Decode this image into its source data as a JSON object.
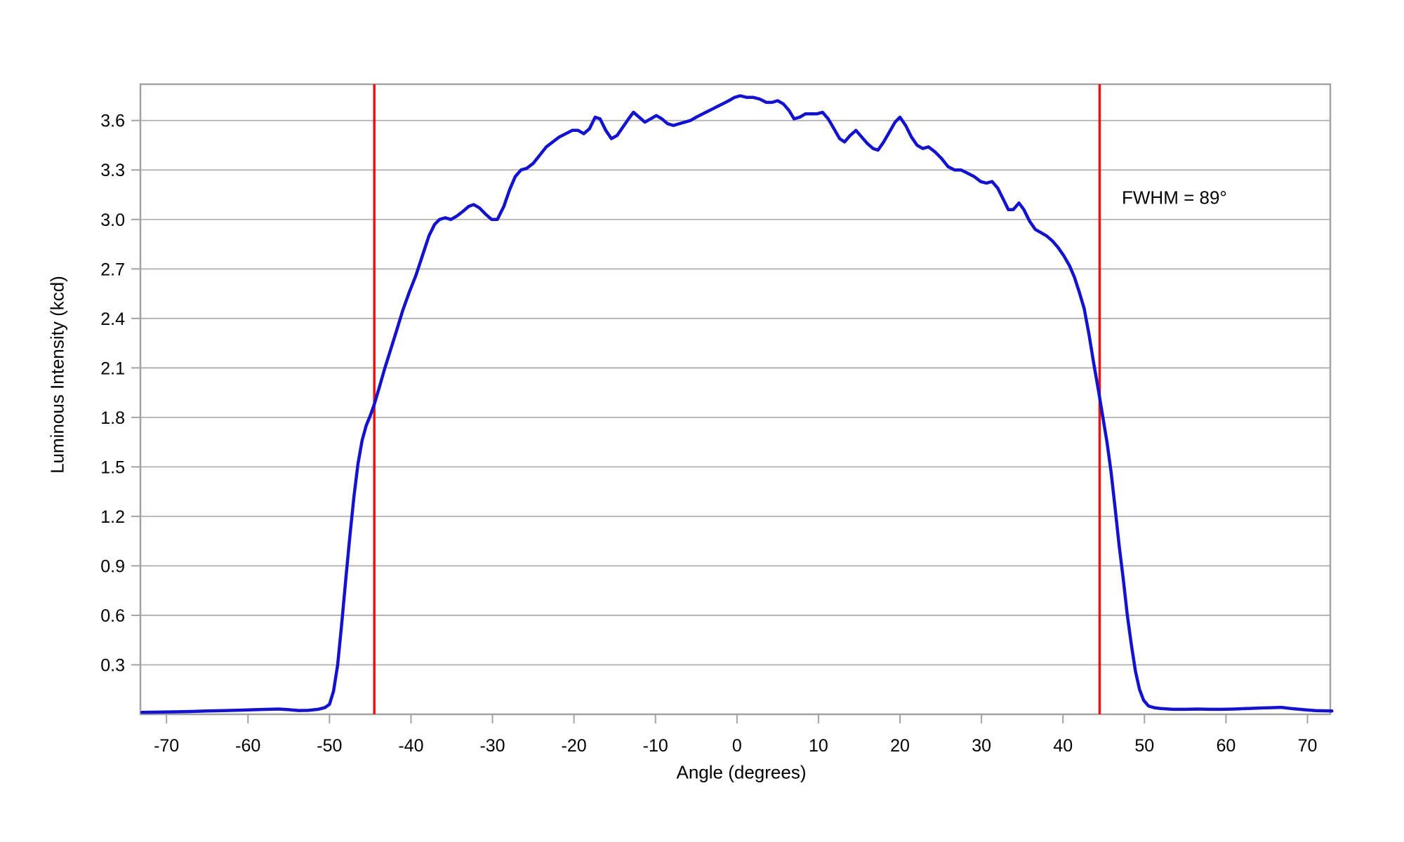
{
  "chart_data": {
    "type": "line",
    "title": "",
    "xlabel": "Angle (degrees)",
    "ylabel": "Luminous Intensity (kcd)",
    "xlim": [
      -73.2,
      72.8
    ],
    "ylim": [
      0,
      3.82
    ],
    "grid": "horizontal-only",
    "legend": "none",
    "grid_color": "#b0b0b0",
    "axis_color": "#a3a3a3",
    "text_color": "#000000",
    "x_tick_values": [
      -70,
      -60,
      -50,
      -40,
      -30,
      -20,
      -10,
      0,
      10,
      20,
      30,
      40,
      50,
      60,
      70
    ],
    "x_tick_labels": [
      "-70",
      "-60",
      "-50",
      "-40",
      "-30",
      "-20",
      "-10",
      "0",
      "10",
      "20",
      "30",
      "40",
      "50",
      "60",
      "70"
    ],
    "y_tick_values": [
      0.3,
      0.6,
      0.9,
      1.2,
      1.5,
      1.8,
      2.1,
      2.4,
      2.7,
      3.0,
      3.3,
      3.6
    ],
    "y_tick_labels": [
      "0.3",
      "0.6",
      "0.9",
      "1.2",
      "1.5",
      "1.8",
      "2.1",
      "2.4",
      "2.7",
      "3.0",
      "3.3",
      "3.6"
    ],
    "annotation": {
      "text": "FWHM = 89°",
      "color": "#000000"
    },
    "markers": [
      {
        "name": "fwhm-marker-left",
        "x": -44.5,
        "color": "#ee1111"
      },
      {
        "name": "fwhm-marker-right",
        "x": 44.5,
        "color": "#ee1111"
      }
    ],
    "series": [
      {
        "name": "luminous-intensity",
        "color": "#1212cf",
        "peak_kcd": 3.75,
        "fwhm_degrees": 89,
        "points": [
          [
            -73,
            0.012
          ],
          [
            -71,
            0.013
          ],
          [
            -69,
            0.015
          ],
          [
            -67,
            0.017
          ],
          [
            -65,
            0.02
          ],
          [
            -63,
            0.022
          ],
          [
            -61,
            0.025
          ],
          [
            -59,
            0.028
          ],
          [
            -57.5,
            0.03
          ],
          [
            -56.2,
            0.032
          ],
          [
            -55,
            0.028
          ],
          [
            -53.8,
            0.023
          ],
          [
            -52.6,
            0.024
          ],
          [
            -51.4,
            0.03
          ],
          [
            -50.6,
            0.04
          ],
          [
            -50,
            0.06
          ],
          [
            -49.5,
            0.14
          ],
          [
            -49,
            0.3
          ],
          [
            -48.5,
            0.55
          ],
          [
            -48,
            0.82
          ],
          [
            -47.5,
            1.08
          ],
          [
            -47,
            1.32
          ],
          [
            -46.5,
            1.52
          ],
          [
            -46,
            1.66
          ],
          [
            -45.5,
            1.75
          ],
          [
            -45,
            1.81
          ],
          [
            -44.5,
            1.88
          ],
          [
            -43.9,
            1.98
          ],
          [
            -43.2,
            2.1
          ],
          [
            -42.5,
            2.21
          ],
          [
            -41.8,
            2.32
          ],
          [
            -41,
            2.45
          ],
          [
            -40.2,
            2.56
          ],
          [
            -39.4,
            2.66
          ],
          [
            -38.6,
            2.78
          ],
          [
            -37.8,
            2.9
          ],
          [
            -37.1,
            2.97
          ],
          [
            -36.5,
            3.0
          ],
          [
            -35.8,
            3.01
          ],
          [
            -35.1,
            3.0
          ],
          [
            -34.4,
            3.02
          ],
          [
            -33.6,
            3.05
          ],
          [
            -32.9,
            3.08
          ],
          [
            -32.3,
            3.09
          ],
          [
            -31.6,
            3.07
          ],
          [
            -30.8,
            3.03
          ],
          [
            -30.1,
            3.0
          ],
          [
            -29.4,
            3.0
          ],
          [
            -28.6,
            3.08
          ],
          [
            -27.9,
            3.18
          ],
          [
            -27.2,
            3.26
          ],
          [
            -26.5,
            3.3
          ],
          [
            -25.8,
            3.31
          ],
          [
            -25,
            3.34
          ],
          [
            -24.2,
            3.39
          ],
          [
            -23.4,
            3.44
          ],
          [
            -22.6,
            3.47
          ],
          [
            -21.8,
            3.5
          ],
          [
            -21,
            3.52
          ],
          [
            -20.2,
            3.54
          ],
          [
            -19.5,
            3.54
          ],
          [
            -18.8,
            3.52
          ],
          [
            -18.1,
            3.55
          ],
          [
            -17.4,
            3.62
          ],
          [
            -16.8,
            3.61
          ],
          [
            -16.1,
            3.54
          ],
          [
            -15.4,
            3.49
          ],
          [
            -14.7,
            3.51
          ],
          [
            -14,
            3.56
          ],
          [
            -13.3,
            3.61
          ],
          [
            -12.7,
            3.65
          ],
          [
            -12,
            3.62
          ],
          [
            -11.3,
            3.59
          ],
          [
            -10.6,
            3.61
          ],
          [
            -9.9,
            3.63
          ],
          [
            -9.2,
            3.61
          ],
          [
            -8.5,
            3.58
          ],
          [
            -7.8,
            3.57
          ],
          [
            -7.1,
            3.58
          ],
          [
            -6.4,
            3.59
          ],
          [
            -5.7,
            3.6
          ],
          [
            -5,
            3.62
          ],
          [
            -4.2,
            3.64
          ],
          [
            -3.4,
            3.66
          ],
          [
            -2.6,
            3.68
          ],
          [
            -1.8,
            3.7
          ],
          [
            -1,
            3.72
          ],
          [
            -0.3,
            3.74
          ],
          [
            0.4,
            3.75
          ],
          [
            1.2,
            3.74
          ],
          [
            2,
            3.74
          ],
          [
            2.8,
            3.73
          ],
          [
            3.6,
            3.71
          ],
          [
            4.3,
            3.71
          ],
          [
            5,
            3.72
          ],
          [
            5.7,
            3.7
          ],
          [
            6.4,
            3.66
          ],
          [
            7,
            3.61
          ],
          [
            7.7,
            3.62
          ],
          [
            8.4,
            3.64
          ],
          [
            9.1,
            3.64
          ],
          [
            9.8,
            3.64
          ],
          [
            10.5,
            3.65
          ],
          [
            11.2,
            3.61
          ],
          [
            11.9,
            3.55
          ],
          [
            12.6,
            3.49
          ],
          [
            13.2,
            3.47
          ],
          [
            13.9,
            3.51
          ],
          [
            14.6,
            3.54
          ],
          [
            15.3,
            3.5
          ],
          [
            16,
            3.46
          ],
          [
            16.7,
            3.43
          ],
          [
            17.3,
            3.42
          ],
          [
            18,
            3.47
          ],
          [
            18.7,
            3.53
          ],
          [
            19.4,
            3.59
          ],
          [
            20,
            3.62
          ],
          [
            20.7,
            3.57
          ],
          [
            21.4,
            3.5
          ],
          [
            22.1,
            3.45
          ],
          [
            22.8,
            3.43
          ],
          [
            23.5,
            3.44
          ],
          [
            24.3,
            3.41
          ],
          [
            25.1,
            3.37
          ],
          [
            25.9,
            3.32
          ],
          [
            26.7,
            3.3
          ],
          [
            27.5,
            3.3
          ],
          [
            28.3,
            3.28
          ],
          [
            29.1,
            3.26
          ],
          [
            29.9,
            3.23
          ],
          [
            30.6,
            3.22
          ],
          [
            31.3,
            3.23
          ],
          [
            32,
            3.19
          ],
          [
            32.7,
            3.12
          ],
          [
            33.3,
            3.06
          ],
          [
            33.9,
            3.06
          ],
          [
            34.6,
            3.1
          ],
          [
            35.2,
            3.06
          ],
          [
            35.9,
            2.99
          ],
          [
            36.6,
            2.94
          ],
          [
            37.3,
            2.92
          ],
          [
            38,
            2.9
          ],
          [
            38.7,
            2.87
          ],
          [
            39.4,
            2.83
          ],
          [
            40.1,
            2.78
          ],
          [
            40.8,
            2.72
          ],
          [
            41.4,
            2.65
          ],
          [
            42,
            2.56
          ],
          [
            42.6,
            2.46
          ],
          [
            43.2,
            2.3
          ],
          [
            43.8,
            2.12
          ],
          [
            44.4,
            1.95
          ],
          [
            44.9,
            1.8
          ],
          [
            45.4,
            1.65
          ],
          [
            45.9,
            1.47
          ],
          [
            46.4,
            1.25
          ],
          [
            46.9,
            1.02
          ],
          [
            47.4,
            0.82
          ],
          [
            47.9,
            0.6
          ],
          [
            48.4,
            0.42
          ],
          [
            48.9,
            0.26
          ],
          [
            49.4,
            0.15
          ],
          [
            49.9,
            0.085
          ],
          [
            50.5,
            0.05
          ],
          [
            51.2,
            0.04
          ],
          [
            52,
            0.035
          ],
          [
            53.5,
            0.03
          ],
          [
            55,
            0.03
          ],
          [
            56.5,
            0.032
          ],
          [
            58,
            0.03
          ],
          [
            59.5,
            0.03
          ],
          [
            61,
            0.032
          ],
          [
            62.5,
            0.035
          ],
          [
            64,
            0.038
          ],
          [
            65.5,
            0.04
          ],
          [
            66.8,
            0.042
          ],
          [
            68,
            0.035
          ],
          [
            69.5,
            0.028
          ],
          [
            71,
            0.022
          ],
          [
            73,
            0.02
          ]
        ]
      }
    ]
  }
}
